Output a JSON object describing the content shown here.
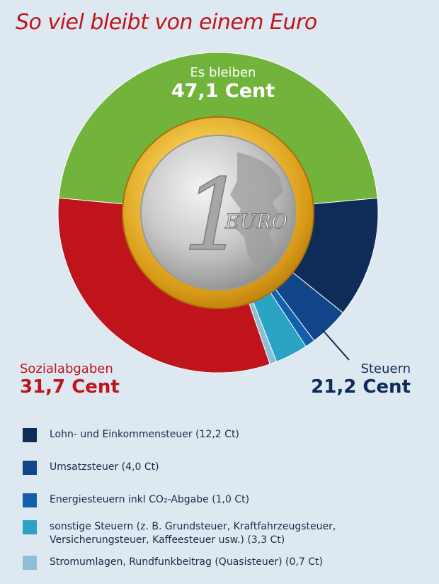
{
  "chart_data": {
    "type": "pie",
    "title": "So viel bleibt von einem Euro",
    "groups": [
      {
        "name": "Es bleiben",
        "value_label": "47,1 Cent",
        "value": 47.1,
        "color": "#72b33c"
      },
      {
        "name": "Steuern",
        "value_label": "21,2 Cent",
        "value": 21.2,
        "color": "#0e2c57"
      },
      {
        "name": "Sozialabgaben",
        "value_label": "31,7 Cent",
        "value": 31.7,
        "color": "#c0141c"
      }
    ],
    "slices": [
      {
        "key": "remain",
        "value": 47.1,
        "color": "#72b33c"
      },
      {
        "key": "lohn",
        "value": 12.2,
        "color": "#0e2c57"
      },
      {
        "key": "umsatz",
        "value": 4.0,
        "color": "#12468a"
      },
      {
        "key": "energie",
        "value": 1.0,
        "color": "#1260ab"
      },
      {
        "key": "sonstige",
        "value": 3.3,
        "color": "#2aa3c4"
      },
      {
        "key": "strom",
        "value": 0.7,
        "color": "#8cbfd6"
      },
      {
        "key": "sozial",
        "value": 31.7,
        "color": "#c0141c"
      }
    ],
    "legend": [
      {
        "label": "Lohn- und Einkommensteuer (12,2 Ct)",
        "color": "#0e2c57"
      },
      {
        "label": "Umsatzsteuer (4,0 Ct)",
        "color": "#12468a"
      },
      {
        "label": "Energiesteuern inkl CO₂-Abgabe (1,0 Ct)",
        "color": "#1260ab"
      },
      {
        "label": "sonstige Steuern (z. B. Grundsteuer, Kraftfahrzeugsteuer,\nVersicherungsteuer, Kaffeesteuer usw.) (3,3 Ct)",
        "color": "#2aa3c4"
      },
      {
        "label": "Stromumlagen, Rundfunkbeitrag (Quasisteuer) (0,7 Ct)",
        "color": "#8cbfd6"
      }
    ]
  },
  "coin": {
    "numeral": "1",
    "text": "EURO"
  }
}
